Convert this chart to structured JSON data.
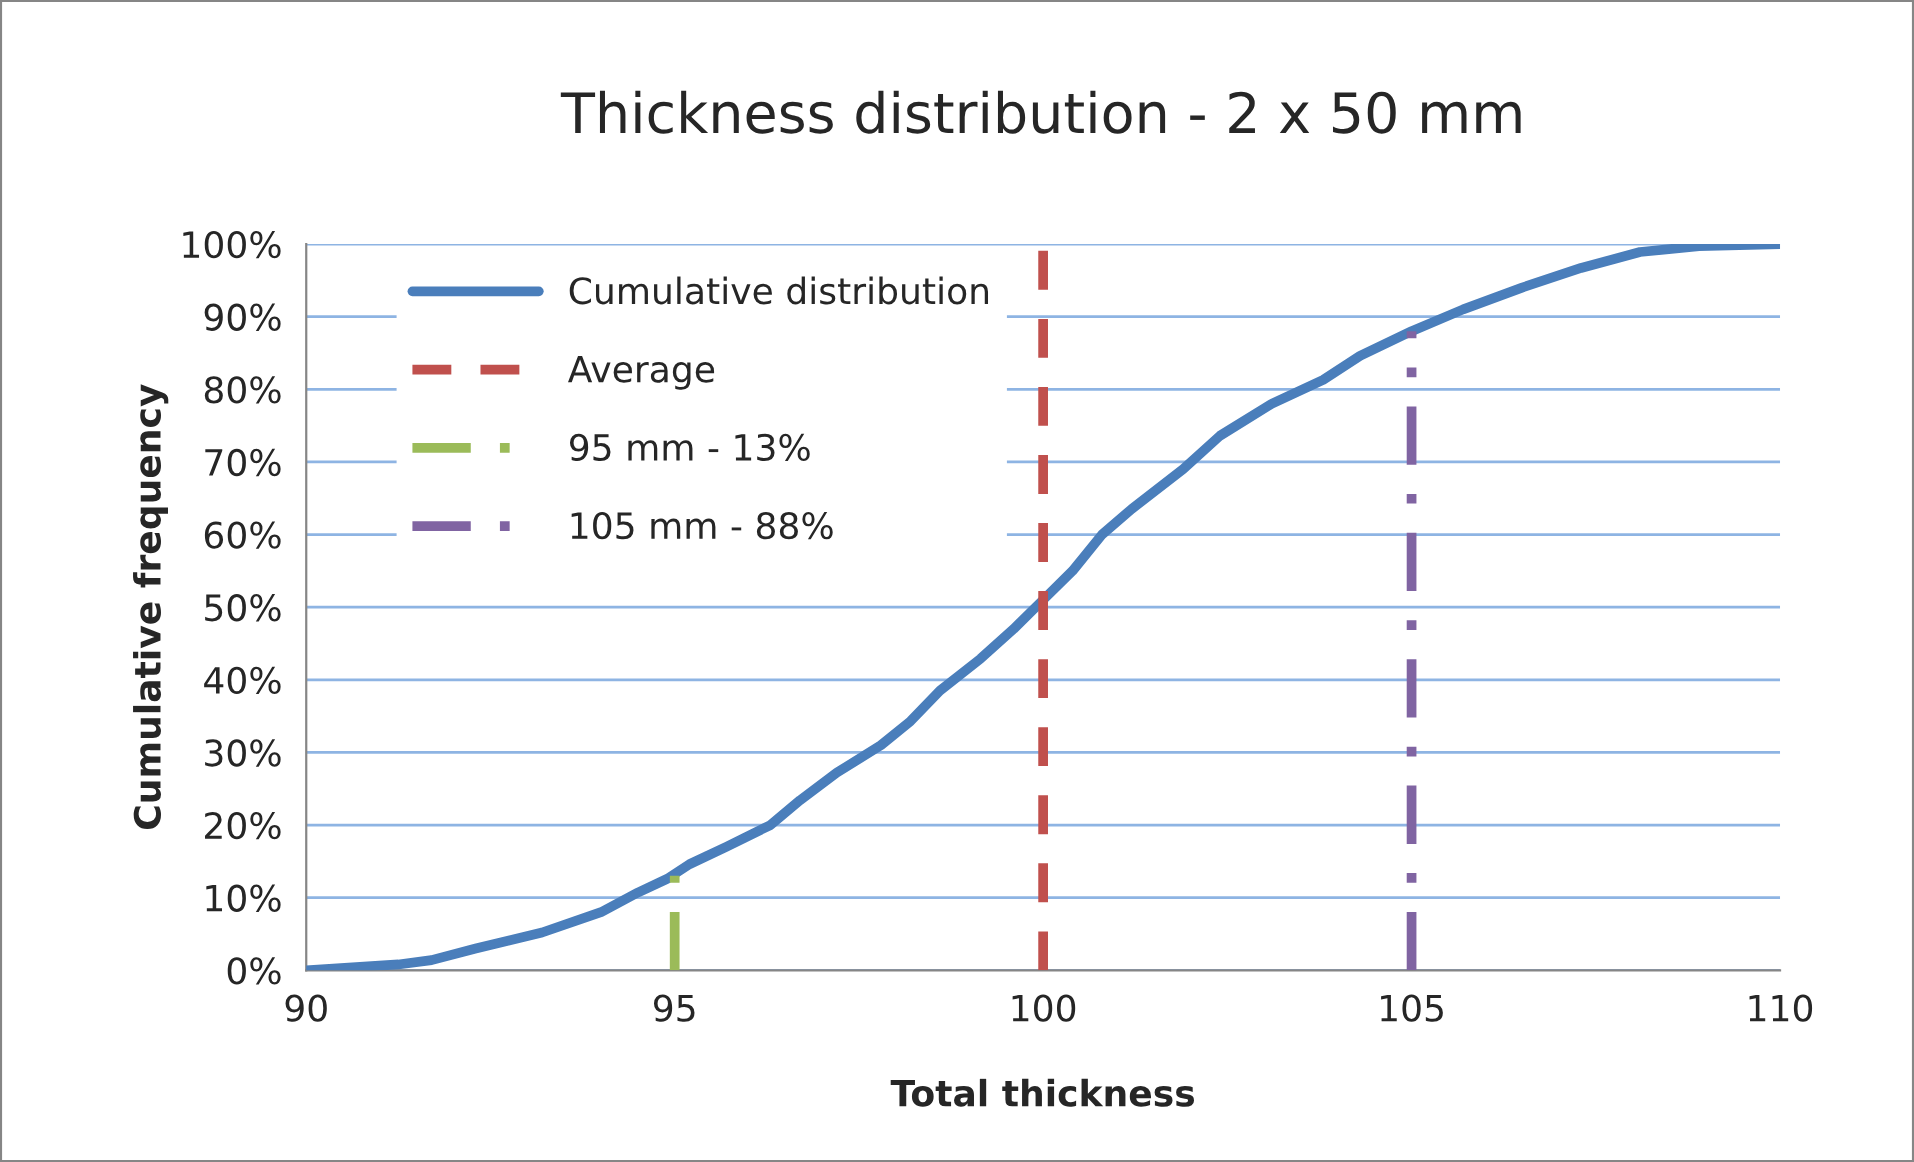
{
  "chart_data": {
    "type": "line",
    "title": "Thickness distribution - 2 x 50 mm",
    "xlabel": "Total thickness",
    "ylabel": "Cumulative frequency",
    "series": [
      {
        "name": "Cumulative distribution",
        "color": "#4a7ebb",
        "line_style": "solid",
        "x": [
          90,
          91.25,
          91.7,
          92.3,
          93.2,
          94.0,
          94.5,
          94.9,
          95.2,
          95.7,
          96.3,
          96.7,
          97.2,
          97.8,
          98.2,
          98.6,
          99.15,
          99.6,
          100,
          100.4,
          100.8,
          101.2,
          101.9,
          102.4,
          103.1,
          103.8,
          104.3,
          105,
          105.7,
          106.5,
          107.3,
          108.1,
          108.9,
          110
        ],
        "values": [
          0,
          0.8,
          1.4,
          3.0,
          5.2,
          8.0,
          10.7,
          12.6,
          14.6,
          17,
          20,
          23.4,
          27.2,
          31,
          34.3,
          38.5,
          42.9,
          47,
          51,
          55,
          60,
          63.5,
          69,
          73.6,
          78,
          81.3,
          84.6,
          88,
          91,
          94,
          96.7,
          98.9,
          99.7,
          100
        ]
      },
      {
        "name": "Average",
        "color": "#c0504d",
        "line_style": "dashed",
        "x": [
          100,
          100
        ],
        "values": [
          0,
          100
        ]
      },
      {
        "name": "95 mm - 13%",
        "color": "#9bbb59",
        "line_style": "dashdot",
        "x": [
          95,
          95
        ],
        "values": [
          0,
          13
        ]
      },
      {
        "name": "105 mm - 88%",
        "color": "#8064a2",
        "line_style": "dashdot",
        "x": [
          105,
          105
        ],
        "values": [
          0,
          88
        ]
      }
    ],
    "xlim": [
      90,
      110
    ],
    "xticks": [
      90,
      95,
      100,
      105,
      110
    ],
    "ylim": [
      0,
      100
    ],
    "yticks": [
      {
        "value": 0,
        "label": "0%"
      },
      {
        "value": 10,
        "label": "10%"
      },
      {
        "value": 20,
        "label": "20%"
      },
      {
        "value": 30,
        "label": "30%"
      },
      {
        "value": 40,
        "label": "40%"
      },
      {
        "value": 50,
        "label": "50%"
      },
      {
        "value": 60,
        "label": "60%"
      },
      {
        "value": 70,
        "label": "70%"
      },
      {
        "value": 80,
        "label": "80%"
      },
      {
        "value": 90,
        "label": "90%"
      },
      {
        "value": 100,
        "label": "100%"
      }
    ],
    "grid": "y",
    "legend": "top left"
  }
}
